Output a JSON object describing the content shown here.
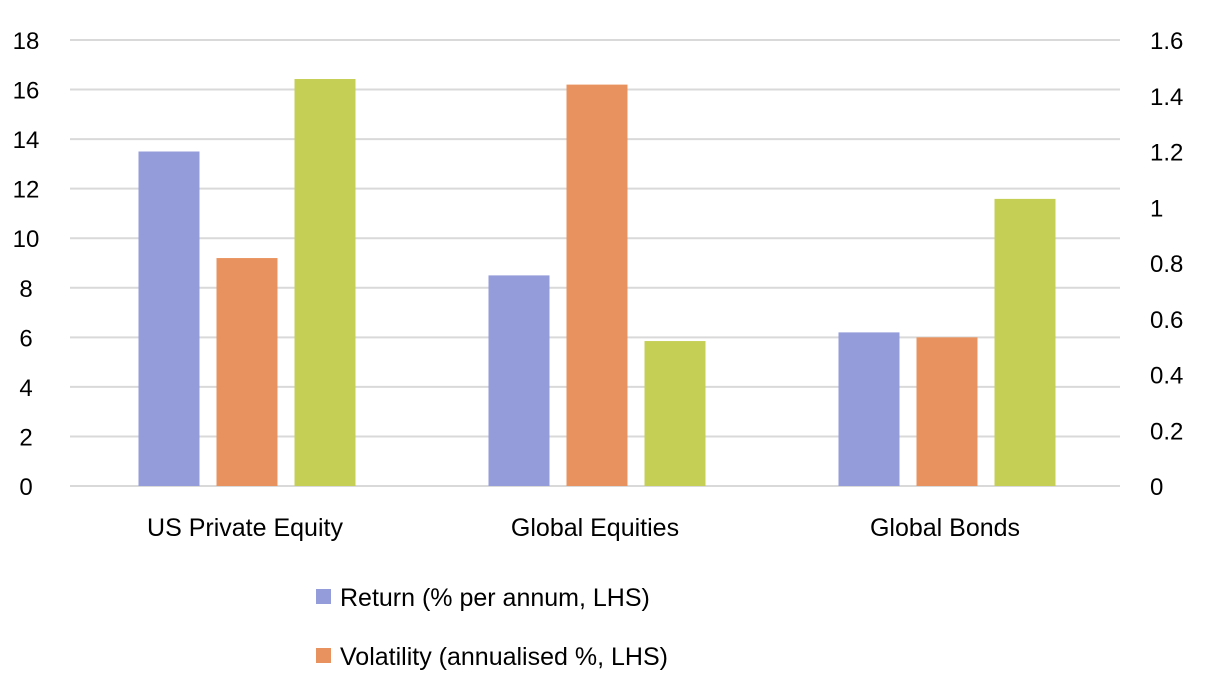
{
  "chart_data": {
    "type": "bar",
    "categories": [
      "US Private Equity",
      "Global Equities",
      "Global Bonds"
    ],
    "series": [
      {
        "name": "Return (% per annum, LHS)",
        "axis": "left",
        "color": "#959cda",
        "values": [
          13.5,
          8.5,
          6.2
        ]
      },
      {
        "name": "Volatility (annualised %, LHS)",
        "axis": "left",
        "color": "#e8935f",
        "values": [
          9.2,
          16.2,
          6.0
        ]
      },
      {
        "name": "",
        "axis": "right",
        "color": "#c5cf55",
        "values": [
          1.46,
          0.52,
          1.03
        ]
      }
    ],
    "y_left": {
      "min": 0,
      "max": 18,
      "ticks": [
        "0",
        "2",
        "4",
        "6",
        "8",
        "10",
        "12",
        "14",
        "16",
        "18"
      ]
    },
    "y_right": {
      "min": 0,
      "max": 1.6,
      "ticks": [
        "0",
        "0.2",
        "0.4",
        "0.6",
        "0.8",
        "1",
        "1.2",
        "1.4",
        "1.6"
      ]
    },
    "grid": true,
    "legend": "bottom"
  }
}
